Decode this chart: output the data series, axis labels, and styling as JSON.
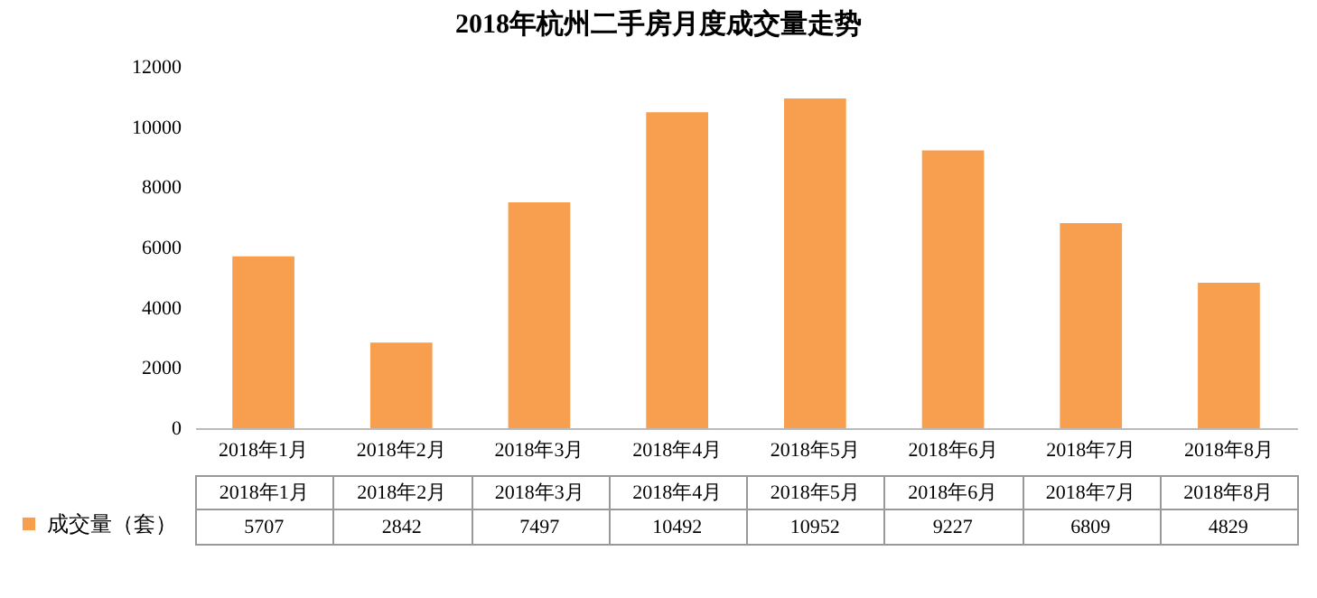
{
  "chart_data": {
    "type": "bar",
    "title": "2018年杭州二手房月度成交量走势",
    "categories": [
      "2018年1月",
      "2018年2月",
      "2018年3月",
      "2018年4月",
      "2018年5月",
      "2018年6月",
      "2018年7月",
      "2018年8月"
    ],
    "series": [
      {
        "name": "成交量（套）",
        "color": "#f79f4f",
        "values": [
          5707,
          2842,
          7497,
          10492,
          10952,
          9227,
          6809,
          4829
        ]
      }
    ],
    "ylim": [
      0,
      12000
    ],
    "yticks": [
      0,
      2000,
      4000,
      6000,
      8000,
      10000,
      12000
    ],
    "grid": false,
    "data_labels": true,
    "legend": "bottom left"
  }
}
